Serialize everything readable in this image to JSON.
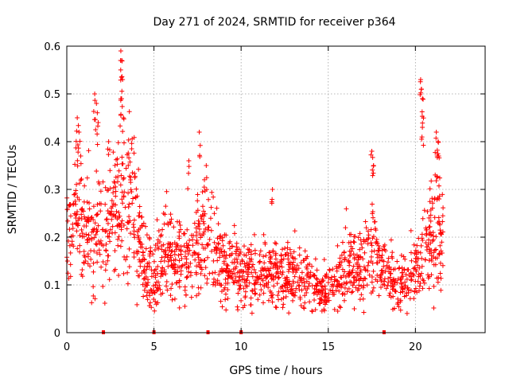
{
  "chart_data": {
    "type": "scatter",
    "title": "Day 271 of 2024, SRMTID for receiver p364",
    "xlabel": "GPS time / hours",
    "ylabel": "SRMTID / TECUs",
    "xlim": [
      0,
      24
    ],
    "ylim": [
      0,
      0.6
    ],
    "x_ticks": [
      0,
      5,
      10,
      15,
      20
    ],
    "y_ticks": [
      0,
      0.1,
      0.2,
      0.3,
      0.4,
      0.5,
      0.6
    ],
    "x_tick_labels": [
      "0",
      "5",
      "10",
      "15",
      "20"
    ],
    "y_tick_labels": [
      "0",
      "0.1",
      "0.2",
      "0.3",
      "0.4",
      "0.5",
      "0.6"
    ],
    "grid": true,
    "marker": "+",
    "series_color": "#ff0000",
    "grid_color": "#a0a0a0",
    "data_span_hours": [
      0,
      21.6
    ],
    "trend": {
      "x": [
        0,
        0.5,
        1.0,
        1.5,
        2.0,
        2.5,
        3.0,
        3.5,
        4.0,
        4.5,
        5.0,
        5.5,
        6.0,
        6.5,
        7.0,
        7.5,
        8.0,
        8.5,
        9.0,
        9.5,
        10.0,
        10.5,
        11.0,
        11.5,
        12.0,
        12.5,
        13.0,
        13.5,
        14.0,
        14.5,
        15.0,
        15.5,
        16.0,
        16.5,
        17.0,
        17.5,
        18.0,
        18.5,
        19.0,
        19.5,
        20.0,
        20.5,
        21.0,
        21.5
      ],
      "y": [
        0.22,
        0.23,
        0.22,
        0.2,
        0.22,
        0.24,
        0.27,
        0.28,
        0.24,
        0.13,
        0.13,
        0.16,
        0.17,
        0.15,
        0.14,
        0.17,
        0.2,
        0.17,
        0.14,
        0.14,
        0.12,
        0.12,
        0.11,
        0.13,
        0.12,
        0.12,
        0.13,
        0.12,
        0.12,
        0.08,
        0.09,
        0.11,
        0.14,
        0.14,
        0.15,
        0.17,
        0.13,
        0.11,
        0.11,
        0.11,
        0.13,
        0.17,
        0.22,
        0.23
      ]
    },
    "spikes": [
      {
        "x": 0.6,
        "y": 0.45
      },
      {
        "x": 0.7,
        "y": 0.42
      },
      {
        "x": 0.8,
        "y": 0.37
      },
      {
        "x": 1.6,
        "y": 0.5
      },
      {
        "x": 1.7,
        "y": 0.48
      },
      {
        "x": 1.8,
        "y": 0.44
      },
      {
        "x": 2.4,
        "y": 0.4
      },
      {
        "x": 3.1,
        "y": 0.59
      },
      {
        "x": 3.15,
        "y": 0.57
      },
      {
        "x": 3.2,
        "y": 0.53
      },
      {
        "x": 3.1,
        "y": 0.49
      },
      {
        "x": 3.25,
        "y": 0.45
      },
      {
        "x": 7.0,
        "y": 0.36
      },
      {
        "x": 7.6,
        "y": 0.42
      },
      {
        "x": 8.0,
        "y": 0.35
      },
      {
        "x": 11.8,
        "y": 0.3
      },
      {
        "x": 17.5,
        "y": 0.38
      },
      {
        "x": 17.6,
        "y": 0.35
      },
      {
        "x": 20.3,
        "y": 0.53
      },
      {
        "x": 20.35,
        "y": 0.51
      },
      {
        "x": 20.4,
        "y": 0.49
      },
      {
        "x": 20.4,
        "y": 0.43
      },
      {
        "x": 21.2,
        "y": 0.42
      },
      {
        "x": 21.3,
        "y": 0.4
      },
      {
        "x": 21.25,
        "y": 0.37
      }
    ],
    "gap_markers_x": [
      2.1,
      5.0,
      8.1,
      10.0,
      18.2
    ]
  }
}
